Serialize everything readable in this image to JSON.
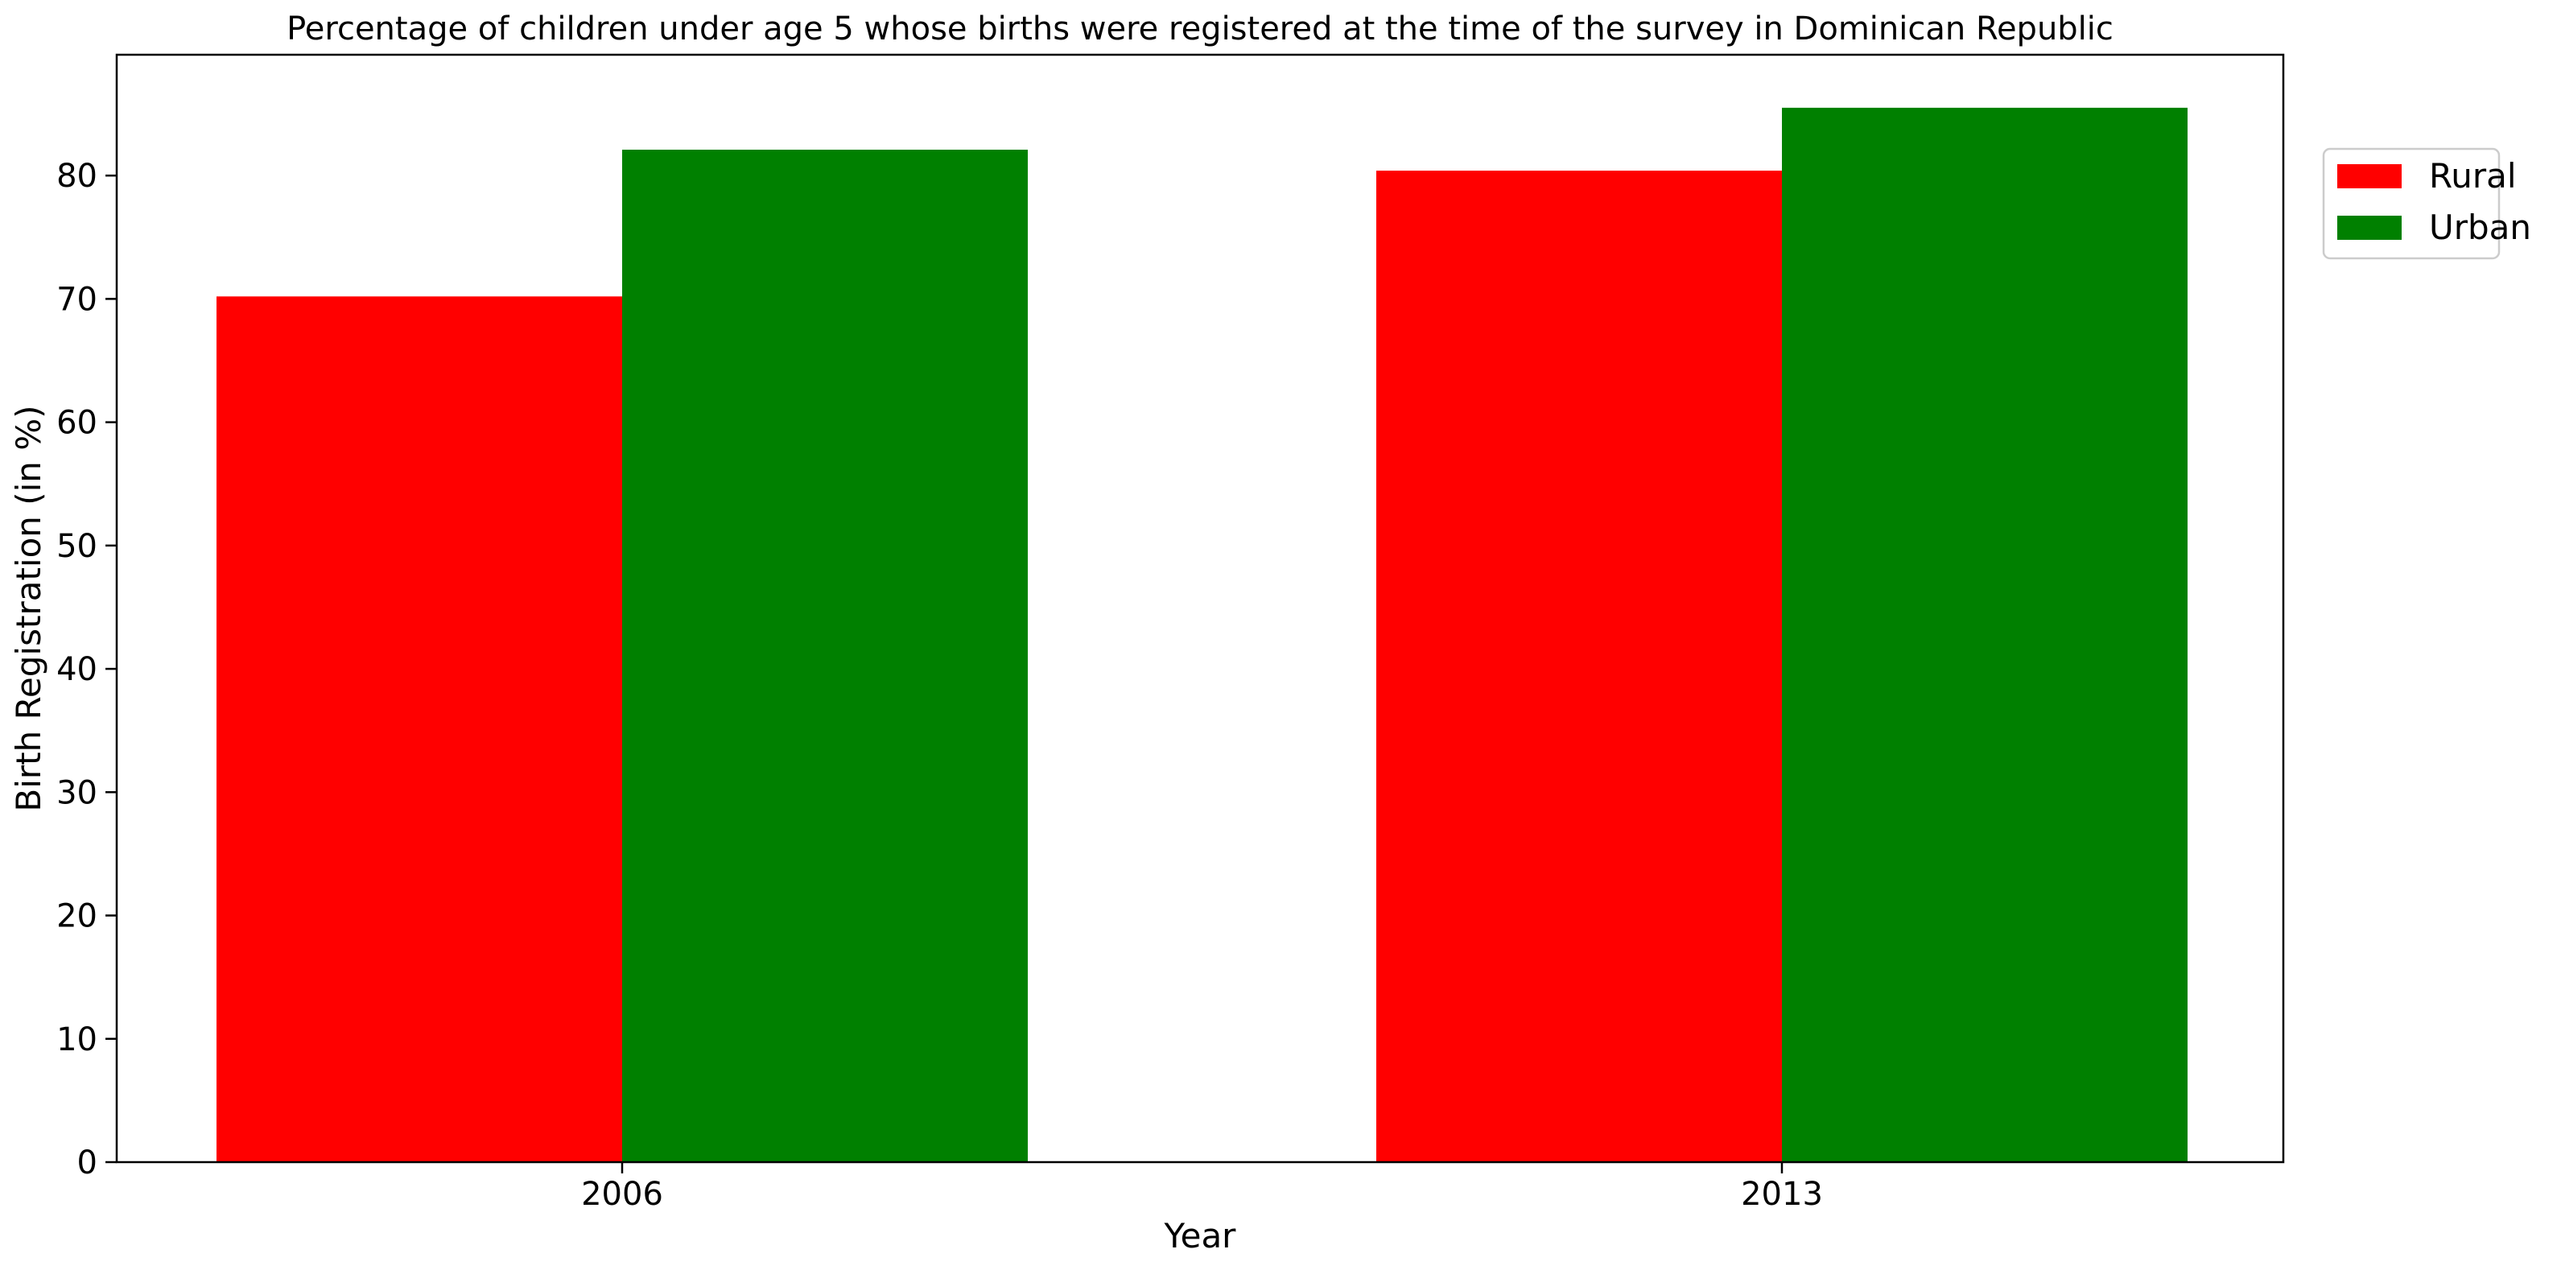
{
  "chart_data": {
    "type": "bar",
    "title": "Percentage of children under age 5 whose births were registered at the time of the survey in Dominican Republic",
    "xlabel": "Year",
    "ylabel": "Birth Registration (in %)",
    "categories": [
      "2006",
      "2013"
    ],
    "series": [
      {
        "name": "Rural",
        "color": "#ff0000",
        "values": [
          70.2,
          80.4
        ]
      },
      {
        "name": "Urban",
        "color": "#008000",
        "values": [
          82.1,
          85.5
        ]
      }
    ],
    "ylim": [
      0,
      89.8
    ],
    "yticks": [
      0,
      10,
      20,
      30,
      40,
      50,
      60,
      70,
      80
    ],
    "grid": false,
    "legend": "top-right, outside plot"
  }
}
